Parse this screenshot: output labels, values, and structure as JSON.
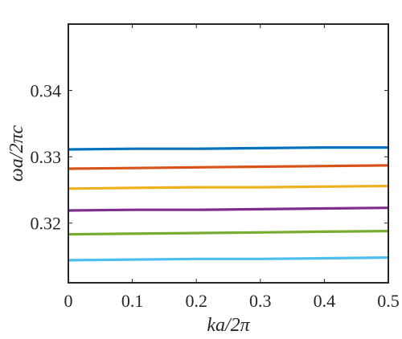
{
  "chart_data": {
    "type": "line",
    "xlabel": "ka/2π",
    "ylabel": "ωa/2πc",
    "xlim": [
      0,
      0.5
    ],
    "ylim": [
      0.311,
      0.35
    ],
    "x_ticks": [
      "0",
      "0.1",
      "0.2",
      "0.3",
      "0.4",
      "0.5"
    ],
    "y_ticks": [
      "0.32",
      "0.33",
      "0.34"
    ],
    "x_tick_values": [
      0,
      0.1,
      0.2,
      0.3,
      0.4,
      0.5
    ],
    "y_tick_values": [
      0.32,
      0.33,
      0.34
    ],
    "grid": false,
    "series": [
      {
        "x": [
          0,
          0.1,
          0.2,
          0.3,
          0.4,
          0.5
        ],
        "y": [
          0.3311,
          0.3312,
          0.3312,
          0.3313,
          0.3314,
          0.3314
        ],
        "color": "#0072BD"
      },
      {
        "x": [
          0,
          0.1,
          0.2,
          0.3,
          0.4,
          0.5
        ],
        "y": [
          0.3282,
          0.3283,
          0.3284,
          0.3285,
          0.3286,
          0.3287
        ],
        "color": "#D95319"
      },
      {
        "x": [
          0,
          0.1,
          0.2,
          0.3,
          0.4,
          0.5
        ],
        "y": [
          0.3252,
          0.3253,
          0.3254,
          0.3254,
          0.3255,
          0.3256
        ],
        "color": "#EDB120"
      },
      {
        "x": [
          0,
          0.1,
          0.2,
          0.3,
          0.4,
          0.5
        ],
        "y": [
          0.3219,
          0.322,
          0.322,
          0.3221,
          0.3222,
          0.3223
        ],
        "color": "#7E2F8E"
      },
      {
        "x": [
          0,
          0.1,
          0.2,
          0.3,
          0.4,
          0.5
        ],
        "y": [
          0.3183,
          0.3184,
          0.3185,
          0.3186,
          0.3187,
          0.3188
        ],
        "color": "#77AC30"
      },
      {
        "x": [
          0,
          0.1,
          0.2,
          0.3,
          0.4,
          0.5
        ],
        "y": [
          0.3144,
          0.3145,
          0.3146,
          0.3146,
          0.3147,
          0.3148
        ],
        "color": "#4DBEEE"
      }
    ]
  }
}
